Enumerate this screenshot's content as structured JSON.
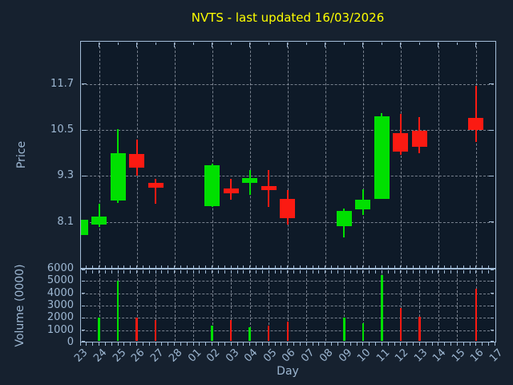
{
  "title": "NVTS - last updated 16/03/2026",
  "colors": {
    "title": "#ffff00",
    "up": "#00e000",
    "down": "#fb1a12",
    "axis": "#a3bdd8",
    "tick_label": "#9db7d2",
    "grid": "#cdd6e0",
    "figure_bg": "#16212f",
    "plot_bg": "#0e1a28"
  },
  "chart_data": [
    {
      "type": "candlestick",
      "title": "NVTS - last updated 16/03/2026",
      "xlabel": "Day",
      "ylabel": "Price",
      "x_categories": [
        "23",
        "24",
        "25",
        "26",
        "27",
        "28",
        "01",
        "02",
        "03",
        "04",
        "05",
        "06",
        "07",
        "08",
        "09",
        "10",
        "11",
        "12",
        "13",
        "14",
        "15",
        "16",
        "17"
      ],
      "ylim": [
        6.88,
        12.83
      ],
      "yticks": [
        8.1,
        9.3,
        10.5,
        11.7
      ],
      "grid": true,
      "gridline_days": [
        "24",
        "26",
        "28",
        "02",
        "04",
        "06",
        "08",
        "10",
        "12",
        "14",
        "16"
      ],
      "candles": [
        {
          "day": "23",
          "open": 7.77,
          "high": 8.15,
          "low": 7.77,
          "close": 8.15
        },
        {
          "day": "24",
          "open": 8.04,
          "high": 8.58,
          "low": 7.96,
          "close": 8.25
        },
        {
          "day": "25",
          "open": 8.66,
          "high": 10.52,
          "low": 8.6,
          "close": 9.89
        },
        {
          "day": "26",
          "open": 9.87,
          "high": 10.26,
          "low": 9.32,
          "close": 9.52
        },
        {
          "day": "27",
          "open": 9.13,
          "high": 9.22,
          "low": 8.57,
          "close": 9.0
        },
        {
          "day": "02",
          "open": 8.51,
          "high": 9.62,
          "low": 8.5,
          "close": 9.58
        },
        {
          "day": "03",
          "open": 8.97,
          "high": 9.23,
          "low": 8.68,
          "close": 8.85
        },
        {
          "day": "04",
          "open": 9.13,
          "high": 9.46,
          "low": 8.81,
          "close": 9.25
        },
        {
          "day": "05",
          "open": 9.04,
          "high": 9.46,
          "low": 8.49,
          "close": 8.94
        },
        {
          "day": "06",
          "open": 8.7,
          "high": 8.93,
          "low": 8.04,
          "close": 8.19
        },
        {
          "day": "09",
          "open": 7.98,
          "high": 8.46,
          "low": 7.7,
          "close": 8.38
        },
        {
          "day": "10",
          "open": 8.43,
          "high": 8.96,
          "low": 8.29,
          "close": 8.69
        },
        {
          "day": "11",
          "open": 8.71,
          "high": 10.95,
          "low": 8.71,
          "close": 10.86
        },
        {
          "day": "12",
          "open": 10.42,
          "high": 10.93,
          "low": 9.86,
          "close": 9.93
        },
        {
          "day": "13",
          "open": 10.48,
          "high": 10.84,
          "low": 9.9,
          "close": 10.07
        },
        {
          "day": "16",
          "open": 10.81,
          "high": 11.65,
          "low": 10.2,
          "close": 10.51
        }
      ]
    },
    {
      "type": "bar",
      "ylabel": "Volume (0000)",
      "ylim": [
        0,
        6000
      ],
      "yticks": [
        0,
        1000,
        2000,
        3000,
        4000,
        5000,
        6000
      ],
      "grid": true,
      "bars": [
        {
          "day": "24",
          "value": 2000,
          "direction": "up"
        },
        {
          "day": "25",
          "value": 5000,
          "direction": "up"
        },
        {
          "day": "26",
          "value": 2050,
          "direction": "down"
        },
        {
          "day": "27",
          "value": 1800,
          "direction": "down"
        },
        {
          "day": "02",
          "value": 1400,
          "direction": "up"
        },
        {
          "day": "03",
          "value": 1850,
          "direction": "down"
        },
        {
          "day": "04",
          "value": 1250,
          "direction": "up"
        },
        {
          "day": "05",
          "value": 1350,
          "direction": "down"
        },
        {
          "day": "06",
          "value": 1700,
          "direction": "down"
        },
        {
          "day": "09",
          "value": 2000,
          "direction": "up"
        },
        {
          "day": "10",
          "value": 1550,
          "direction": "up"
        },
        {
          "day": "11",
          "value": 5500,
          "direction": "up"
        },
        {
          "day": "12",
          "value": 2800,
          "direction": "down"
        },
        {
          "day": "13",
          "value": 2100,
          "direction": "down"
        },
        {
          "day": "16",
          "value": 4400,
          "direction": "down"
        }
      ]
    }
  ]
}
